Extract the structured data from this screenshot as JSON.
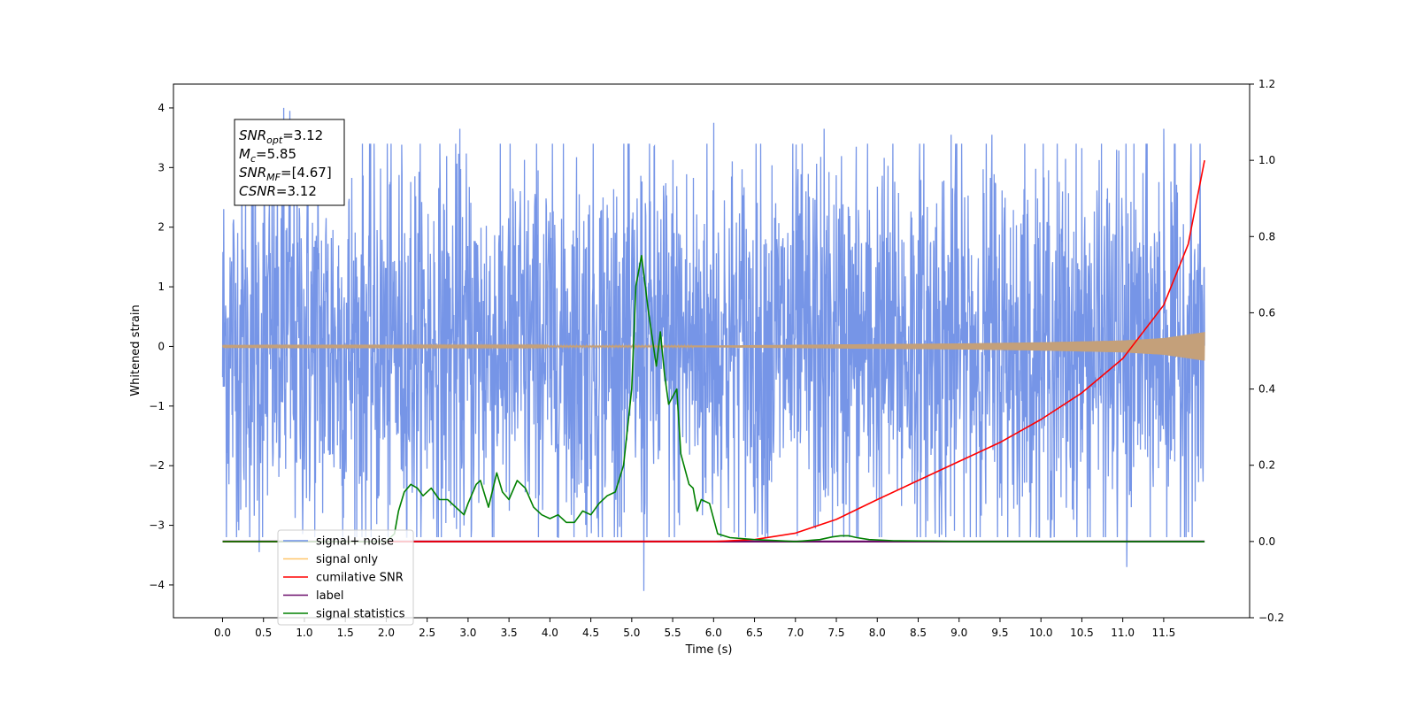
{
  "chart_data": {
    "type": "line",
    "xlabel": "Time (s)",
    "ylabel": "Whitened strain",
    "xlim": [
      -0.6,
      12.55
    ],
    "ylim": [
      -4.55,
      4.4
    ],
    "y2lim": [
      -0.2,
      1.2
    ],
    "x_ticks": [
      "0.0",
      "0.5",
      "1.0",
      "1.5",
      "2.0",
      "2.5",
      "3.0",
      "3.5",
      "4.0",
      "4.5",
      "5.0",
      "5.5",
      "6.0",
      "6.5",
      "7.0",
      "7.5",
      "8.0",
      "8.5",
      "9.0",
      "9.5",
      "10.0",
      "10.5",
      "11.0",
      "11.5"
    ],
    "y_ticks": [
      "4",
      "3",
      "2",
      "1",
      "0",
      "−1",
      "−2",
      "−3",
      "−4"
    ],
    "y2_ticks": [
      "1.2",
      "1.0",
      "0.8",
      "0.6",
      "0.4",
      "0.2",
      "0.0",
      "−0.2"
    ],
    "annotation": [
      {
        "base": "SNR",
        "sub": "opt",
        "value": "=3.12"
      },
      {
        "base": "M",
        "sub": "c",
        "value": "=5.85"
      },
      {
        "base": "SNR",
        "sub": "MF",
        "value": "=[4.67]"
      },
      {
        "base": "CSNR",
        "sub": "",
        "value": "=3.12"
      }
    ],
    "legend": {
      "position": "lower-left",
      "entries": [
        {
          "label": "signal+ noise",
          "color": "#6f8fe6"
        },
        {
          "label": "signal only",
          "color": "#ffc66b"
        },
        {
          "label": "cumilative SNR",
          "color": "#ff0000"
        },
        {
          "label": "label",
          "color": "#6a0d6a"
        },
        {
          "label": "signal statistics",
          "color": "#008000"
        }
      ]
    },
    "series": [
      {
        "name": "signal+ noise",
        "axis": "left",
        "color": "#6f8fe6",
        "x_range": [
          0.0,
          12.0
        ],
        "typical_range": [
          -2.3,
          2.3
        ],
        "extremes": [
          {
            "x": 0.75,
            "y": 4.0
          },
          {
            "x": 0.82,
            "y": 3.95
          },
          {
            "x": 0.45,
            "y": -3.45
          },
          {
            "x": 2.9,
            "y": -3.7
          },
          {
            "x": 5.15,
            "y": -4.1
          },
          {
            "x": 11.05,
            "y": -3.7
          },
          {
            "x": 6.0,
            "y": 3.75
          },
          {
            "x": 2.9,
            "y": 3.65
          },
          {
            "x": 7.35,
            "y": 3.65
          },
          {
            "x": 11.5,
            "y": 3.65
          },
          {
            "x": 9.4,
            "y": 3.55
          },
          {
            "x": 8.9,
            "y": 3.55
          }
        ]
      },
      {
        "name": "signal only",
        "axis": "left",
        "color": "#ffc66b",
        "amplitude_envelope": [
          [
            0,
            0.01
          ],
          [
            6,
            0.015
          ],
          [
            8,
            0.04
          ],
          [
            9,
            0.05
          ],
          [
            10,
            0.07
          ],
          [
            11,
            0.1
          ],
          [
            11.5,
            0.14
          ],
          [
            12,
            0.24
          ]
        ]
      },
      {
        "name": "cumilative SNR",
        "axis": "right",
        "color": "#ff0000",
        "x": [
          0.0,
          6.0,
          6.5,
          7.0,
          7.5,
          8.0,
          8.5,
          9.0,
          9.5,
          10.0,
          10.5,
          11.0,
          11.5,
          11.8,
          12.0
        ],
        "values": [
          0.0,
          0.0,
          0.005,
          0.022,
          0.058,
          0.11,
          0.16,
          0.21,
          0.26,
          0.32,
          0.39,
          0.48,
          0.62,
          0.78,
          1.0
        ]
      },
      {
        "name": "label",
        "axis": "right",
        "color": "#6a0d6a",
        "x": [
          0.0,
          12.0
        ],
        "values": [
          0.0,
          0.0
        ]
      },
      {
        "name": "signal statistics",
        "axis": "right",
        "color": "#008000",
        "x": [
          0.0,
          2.0,
          2.1,
          2.15,
          2.22,
          2.3,
          2.38,
          2.45,
          2.55,
          2.65,
          2.75,
          2.85,
          2.95,
          3.0,
          3.1,
          3.15,
          3.25,
          3.35,
          3.42,
          3.5,
          3.6,
          3.7,
          3.8,
          3.9,
          4.0,
          4.1,
          4.2,
          4.3,
          4.4,
          4.5,
          4.6,
          4.7,
          4.8,
          4.9,
          5.0,
          5.05,
          5.12,
          5.2,
          5.3,
          5.35,
          5.4,
          5.45,
          5.5,
          5.55,
          5.6,
          5.7,
          5.75,
          5.8,
          5.85,
          5.95,
          6.05,
          6.2,
          6.5,
          7.0,
          7.3,
          7.45,
          7.55,
          7.65,
          7.75,
          7.9,
          8.2,
          8.7,
          9.0,
          12.0
        ],
        "values": [
          0.0,
          0.0,
          0.02,
          0.08,
          0.13,
          0.15,
          0.14,
          0.12,
          0.14,
          0.11,
          0.11,
          0.09,
          0.07,
          0.1,
          0.15,
          0.16,
          0.09,
          0.18,
          0.13,
          0.11,
          0.16,
          0.14,
          0.09,
          0.07,
          0.06,
          0.07,
          0.05,
          0.05,
          0.08,
          0.07,
          0.1,
          0.12,
          0.13,
          0.2,
          0.4,
          0.67,
          0.75,
          0.61,
          0.46,
          0.55,
          0.44,
          0.36,
          0.38,
          0.4,
          0.23,
          0.15,
          0.14,
          0.08,
          0.11,
          0.1,
          0.02,
          0.01,
          0.005,
          0.0,
          0.005,
          0.012,
          0.015,
          0.015,
          0.01,
          0.005,
          0.002,
          0.001,
          0.0,
          0.0
        ]
      }
    ]
  }
}
